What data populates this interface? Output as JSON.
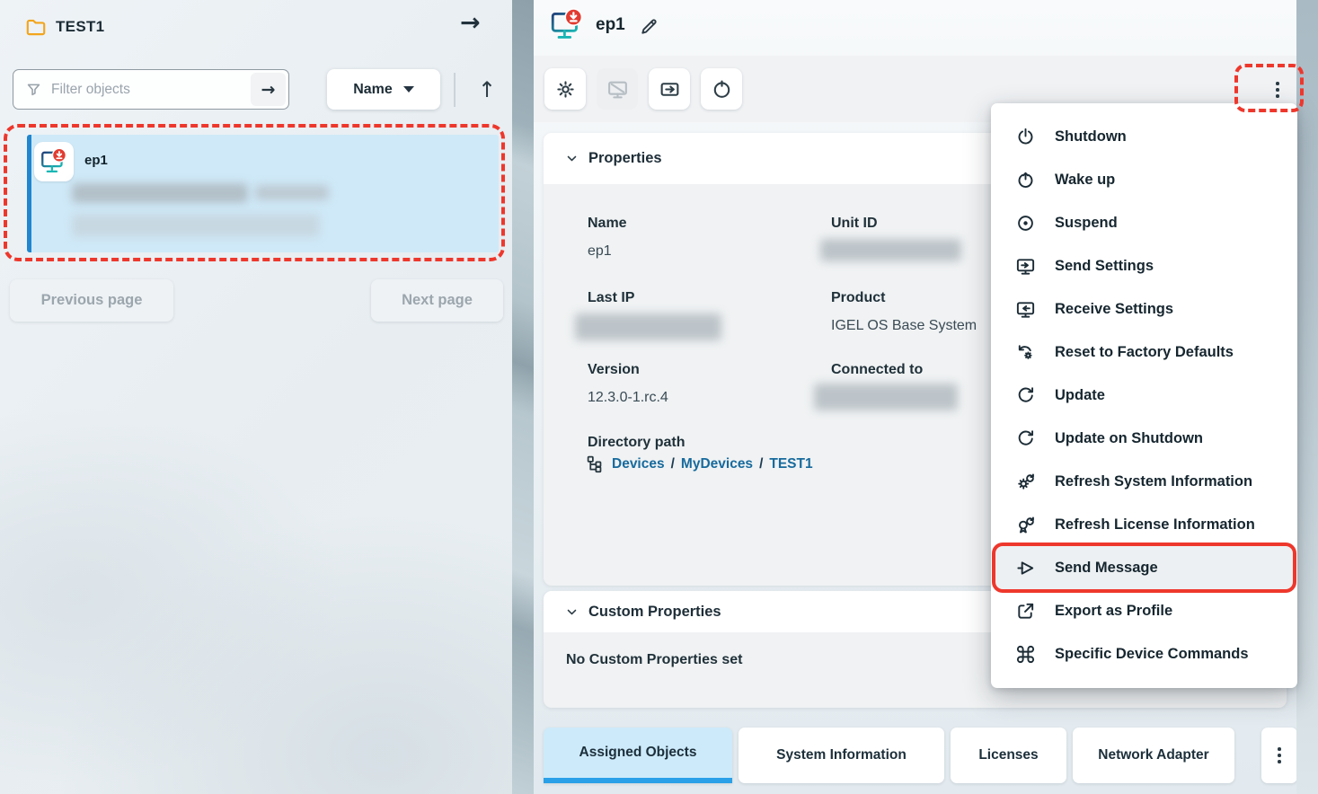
{
  "colors": {
    "annotation_red": "#EE372C",
    "selection_blue": "#CFE9F8",
    "selection_accent": "#1F86CF",
    "tab_active_bg": "#CDEAFA",
    "tab_underline": "#2AA0E8",
    "link_blue": "#176A9D",
    "device_badge_red": "#E23B30",
    "device_teal": "#19B6B4"
  },
  "left_panel": {
    "folder_icon": "folder-icon",
    "title": "TEST1",
    "open_arrow": "→",
    "filter": {
      "icon": "funnel-icon",
      "placeholder": "Filter objects",
      "submit_arrow": "→"
    },
    "sort": {
      "label": "Name",
      "caret_icon": "caret-down-icon",
      "direction_arrow": "↑"
    },
    "device_item": {
      "icon": "device-icon",
      "name": "ep1",
      "redacted_lines": 3,
      "selected": true
    },
    "pager": {
      "previous": "Previous page",
      "next": "Next page"
    }
  },
  "right_panel": {
    "header": {
      "icon": "device-icon",
      "title": "ep1",
      "edit_icon": "pencil-icon"
    },
    "toolbar": {
      "buttons": [
        {
          "icon": "gear-icon",
          "disabled": false
        },
        {
          "icon": "monitor-off-icon",
          "disabled": true
        },
        {
          "icon": "send-to-icon",
          "disabled": false
        },
        {
          "icon": "restart-icon",
          "disabled": false
        }
      ],
      "more_icon": "kebab-icon"
    },
    "properties": {
      "title": "Properties",
      "name_label": "Name",
      "name_value": "ep1",
      "unit_id_label": "Unit ID",
      "unit_id_redacted": true,
      "last_ip_label": "Last IP",
      "last_ip_redacted": true,
      "product_label": "Product",
      "product_value": "IGEL OS Base System",
      "version_label": "Version",
      "version_value": "12.3.0-1.rc.4",
      "connected_label": "Connected to",
      "connected_redacted": true,
      "directory_label": "Directory path",
      "path": {
        "icon": "tree-icon",
        "devices": "Devices",
        "mydevices": "MyDevices",
        "test1": "TEST1",
        "sep": "/"
      }
    },
    "custom_properties": {
      "title": "Custom Properties",
      "empty_text": "No Custom Properties set"
    },
    "tabs": [
      {
        "label": "Assigned Objects",
        "active": true
      },
      {
        "label": "System Information",
        "active": false
      },
      {
        "label": "Licenses",
        "active": false
      },
      {
        "label": "Network Adapter",
        "active": false
      }
    ],
    "tabs_more_icon": "kebab-icon"
  },
  "context_menu": {
    "items": [
      {
        "icon": "power-icon",
        "label": "Shutdown",
        "highlighted": false
      },
      {
        "icon": "wake-up-icon",
        "label": "Wake up",
        "highlighted": false
      },
      {
        "icon": "suspend-icon",
        "label": "Suspend",
        "highlighted": false
      },
      {
        "icon": "send-settings-icon",
        "label": "Send Settings",
        "highlighted": false
      },
      {
        "icon": "receive-settings-icon",
        "label": "Receive Settings",
        "highlighted": false
      },
      {
        "icon": "reset-factory-icon",
        "label": "Reset to Factory Defaults",
        "highlighted": false
      },
      {
        "icon": "update-icon",
        "label": "Update",
        "highlighted": false
      },
      {
        "icon": "update-shutdown-icon",
        "label": "Update on Shutdown",
        "highlighted": false
      },
      {
        "icon": "refresh-system-icon",
        "label": "Refresh System Information",
        "highlighted": false
      },
      {
        "icon": "refresh-license-icon",
        "label": "Refresh License Information",
        "highlighted": false
      },
      {
        "icon": "send-message-icon",
        "label": "Send Message",
        "highlighted": true
      },
      {
        "icon": "export-profile-icon",
        "label": "Export as Profile",
        "highlighted": false
      },
      {
        "icon": "command-icon",
        "label": "Specific Device Commands",
        "highlighted": false
      }
    ]
  }
}
